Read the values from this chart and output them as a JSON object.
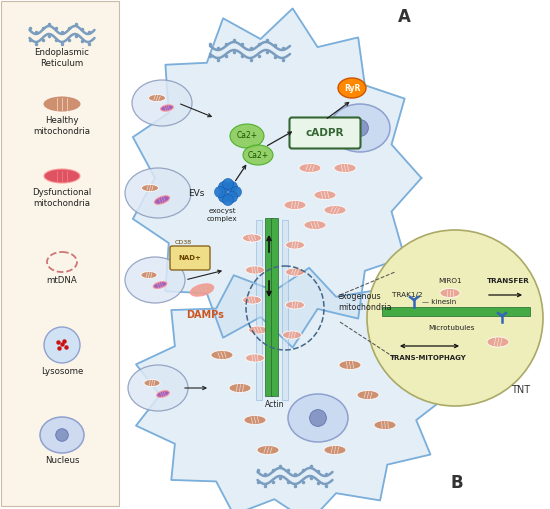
{
  "bg": "#ffffff",
  "legend_bg": "#faf5e8",
  "legend_border": "#ccbbaa",
  "cell_fill": "#cce0f0",
  "cell_border": "#7aaedb",
  "cell_alpha": 0.6,
  "tnt_fill": "#eeeebb",
  "microtubule_color": "#44aa44",
  "healthy_mito": "#cc8866",
  "dysfunc_mito": "#dd4455",
  "mito_pink": "#e8a090",
  "nucleus_fill": "#c8d8f0",
  "nucleus_border": "#8899cc",
  "lyso_fill": "#ddeeff",
  "lyso_border": "#8899cc",
  "lyso_dots": "#cc2222",
  "ca2_fill": "#88cc55",
  "ca2_border": "#44aa22",
  "ryr_fill": "#ff8800",
  "ryr_border": "#cc5500",
  "cadpr_fill": "#eaf5ea",
  "cadpr_border": "#336633",
  "exocyst_fill": "#2277cc",
  "ev_fill": "#dde8f5",
  "ev_border": "#8899bb",
  "nad_fill": "#f0dd88",
  "nad_border": "#886622",
  "arrow_col": "#222222",
  "damp_col": "#cc5522",
  "labels": {
    "ER": "Endoplasmic\nReticulum",
    "healthy_mito": "Healthy\nmitochondria",
    "dysfunc_mito": "Dysfunctional\nmitochondria",
    "mtDNA": "mtDNA",
    "lysosome": "Lysosome",
    "nucleus": "Nucleus",
    "EVs": "EVs",
    "DAMPs": "DAMPs",
    "cADPR": "cADPR",
    "Ca2_1": "Ca2+",
    "Ca2_2": "Ca2+",
    "RyR": "RyR",
    "exocyst": "exocyst\ncomplex",
    "exogenous": "exogenous\nmitochondria",
    "actin": "Actin",
    "TRAK12": "TRAK1/2",
    "MIRO1": "MIRO1",
    "TRANSFER": "TRANSFER",
    "kinesin": "kinesin",
    "Microtubules": "Microtubules",
    "TRANSMITOPHAGY": "TRANS-MITOPHAGY",
    "TNT": "TNT",
    "A": "A",
    "B": "B",
    "CD38": "CD38",
    "NAD": "NAD+"
  }
}
